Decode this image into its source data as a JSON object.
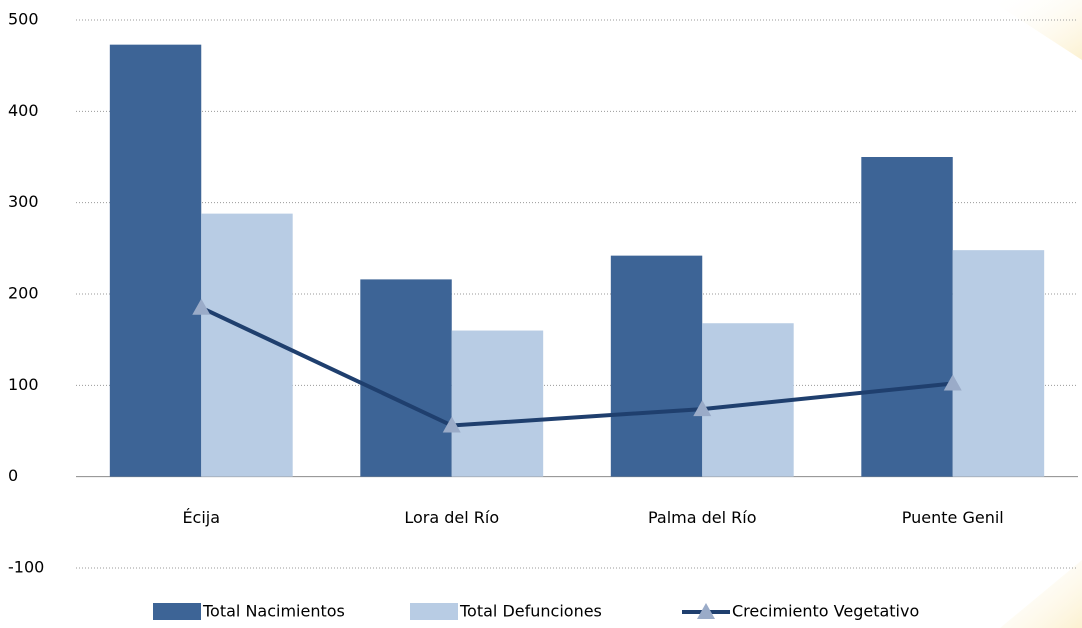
{
  "chart_data": {
    "type": "bar",
    "categories": [
      "Écija",
      "Lora del Río",
      "Palma del Río",
      "Puente Genil"
    ],
    "series": [
      {
        "name": "Total Nacimientos",
        "type": "bar",
        "color": "#3d6496",
        "values": [
          473,
          216,
          242,
          350
        ]
      },
      {
        "name": "Total Defunciones",
        "type": "bar",
        "color": "#b8cce4",
        "values": [
          288,
          160,
          168,
          248
        ]
      },
      {
        "name": "Crecimiento Vegetativo",
        "type": "line",
        "color": "#1f3f6e",
        "marker_color": "#9aabc8",
        "values": [
          185,
          56,
          74,
          102
        ]
      }
    ],
    "ylim": [
      -100,
      500
    ],
    "yticks": [
      -100,
      0,
      100,
      200,
      300,
      400,
      500
    ],
    "grid": true,
    "legend": "bottom"
  }
}
